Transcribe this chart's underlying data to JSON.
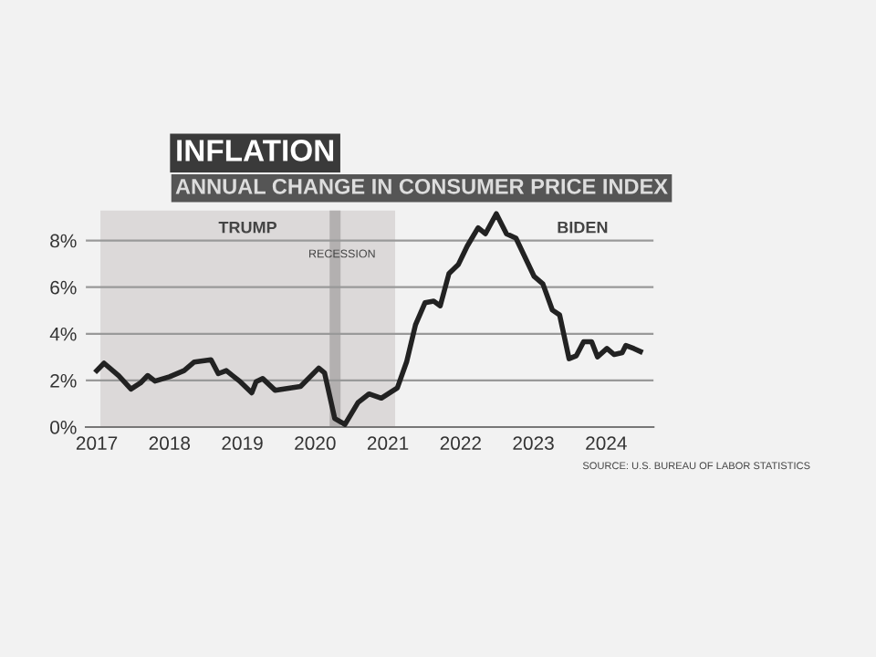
{
  "chart_data": {
    "type": "line",
    "title": "INFLATION",
    "subtitle": "ANNUAL CHANGE IN CONSUMER PRICE INDEX",
    "x": [
      2017.0,
      2017.1,
      2017.3,
      2017.47,
      2017.6,
      2017.7,
      2017.8,
      2018.0,
      2018.2,
      2018.34,
      2018.57,
      2018.67,
      2018.78,
      2018.97,
      2019.13,
      2019.19,
      2019.28,
      2019.45,
      2019.8,
      2020.05,
      2020.13,
      2020.27,
      2020.41,
      2020.59,
      2020.74,
      2020.91,
      2021.13,
      2021.26,
      2021.38,
      2021.51,
      2021.63,
      2021.72,
      2021.84,
      2021.97,
      2022.09,
      2022.24,
      2022.34,
      2022.49,
      2022.63,
      2022.76,
      2023.01,
      2023.13,
      2023.26,
      2023.36,
      2023.49,
      2023.59,
      2023.69,
      2023.8,
      2023.88,
      2024.01,
      2024.11,
      2024.22,
      2024.27,
      2024.38,
      2024.47
    ],
    "series": [
      {
        "color": "#222222",
        "values": [
          2.42,
          2.74,
          2.21,
          1.63,
          1.89,
          2.21,
          1.97,
          2.16,
          2.42,
          2.79,
          2.89,
          2.29,
          2.42,
          1.95,
          1.47,
          1.95,
          2.08,
          1.58,
          1.74,
          2.53,
          2.32,
          0.37,
          0.11,
          1.05,
          1.42,
          1.24,
          1.68,
          2.82,
          4.39,
          5.33,
          5.4,
          5.2,
          6.59,
          6.98,
          7.76,
          8.55,
          8.29,
          9.15,
          8.29,
          8.1,
          6.46,
          6.14,
          5.02,
          4.81,
          2.93,
          3.06,
          3.66,
          3.66,
          3.01,
          3.37,
          3.11,
          3.19,
          3.5,
          3.37,
          3.24
        ]
      }
    ],
    "xlim": [
      2016.85,
      2024.65
    ],
    "xticks": [
      2017,
      2018,
      2019,
      2020,
      2021,
      2022,
      2023,
      2024
    ],
    "ylim": [
      0,
      9.3
    ],
    "yticks": [
      {
        "value": 0,
        "label": "0%"
      },
      {
        "value": 2,
        "label": "2%"
      },
      {
        "value": 4,
        "label": "4%"
      },
      {
        "value": 6,
        "label": "6%"
      },
      {
        "value": 8,
        "label": "8%"
      }
    ],
    "bands": [
      {
        "axis": "x",
        "from": 2017.05,
        "to": 2021.1,
        "label": "TRUMP",
        "color": "#dcd9d9"
      },
      {
        "axis": "x",
        "from": 2020.2,
        "to": 2020.35,
        "label": "RECESSION",
        "color": "#b3b0b0"
      }
    ],
    "annotations": [
      "BIDEN",
      "SOURCE: U.S. BUREAU OF LABOR STATISTICS"
    ],
    "grid": "y",
    "marker": "none",
    "line_style": "solid"
  }
}
